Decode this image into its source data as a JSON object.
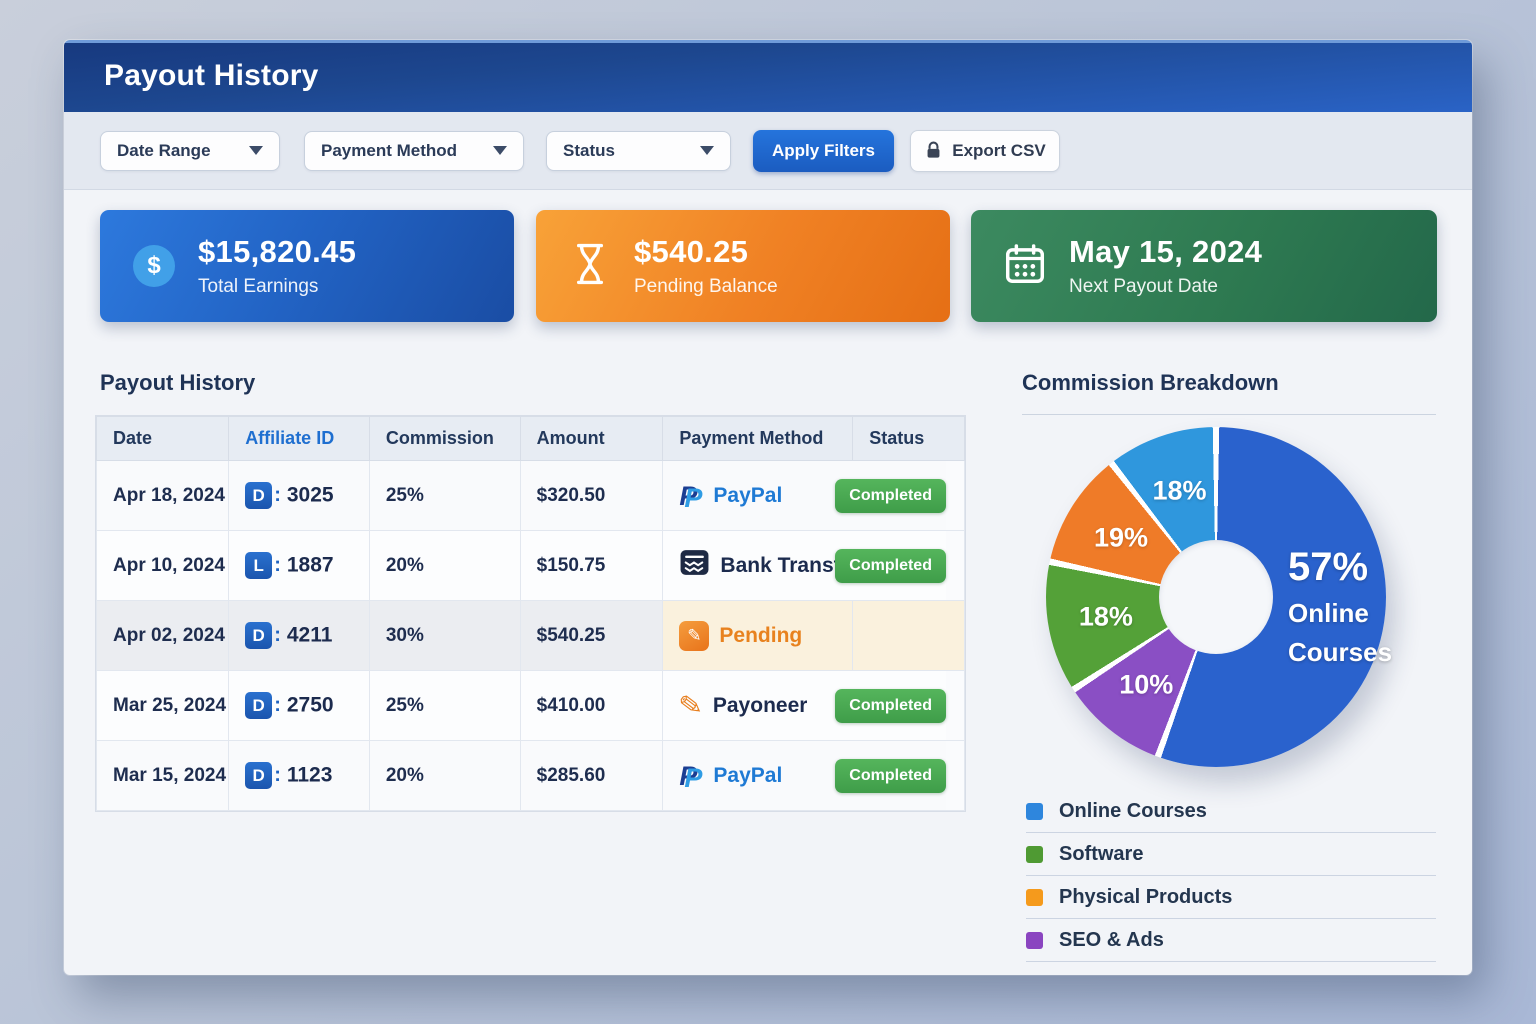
{
  "header": {
    "title": "Payout History"
  },
  "filters": {
    "dropdowns": [
      {
        "label": "Date Range"
      },
      {
        "label": "Payment Method"
      },
      {
        "label": "Status"
      }
    ],
    "apply_label": "Apply Filters",
    "export_label": "Export CSV"
  },
  "stats": [
    {
      "value": "$15,820.45",
      "label": "Total Earnings",
      "icon": "dollar-circle-icon",
      "color": "#2263c4"
    },
    {
      "value": "$540.25",
      "label": "Pending Balance",
      "icon": "hourglass-icon",
      "color": "#f08124"
    },
    {
      "value": "May 15, 2024",
      "label": "Next Payout Date",
      "icon": "calendar-icon",
      "color": "#2e7a51"
    }
  ],
  "table": {
    "title": "Payout History",
    "columns": [
      "Date",
      "Affiliate ID",
      "Commission",
      "Amount",
      "Payment Method",
      "Status"
    ],
    "rows": [
      {
        "date": "Apr 18, 2024",
        "affiliate_badge": "D",
        "affiliate_id": "3025",
        "commission": "25%",
        "amount": "$320.50",
        "method": "PayPal",
        "method_icon": "paypal-icon",
        "status": "Completed"
      },
      {
        "date": "Apr 10, 2024",
        "affiliate_badge": "L",
        "affiliate_id": "1887",
        "commission": "20%",
        "amount": "$150.75",
        "method": "Bank Transfe",
        "method_icon": "bank-transfer-icon",
        "status": "Completed"
      },
      {
        "date": "Apr 02, 2024",
        "affiliate_badge": "D",
        "affiliate_id": "4211",
        "commission": "30%",
        "amount": "$540.25",
        "method": "Pending",
        "method_icon": "pending-icon",
        "status": ""
      },
      {
        "date": "Mar 25, 2024",
        "affiliate_badge": "D",
        "affiliate_id": "2750",
        "commission": "25%",
        "amount": "$410.00",
        "method": "Payoneer",
        "method_icon": "payoneer-icon",
        "status": "Completed"
      },
      {
        "date": "Mar 15, 2024",
        "affiliate_badge": "D",
        "affiliate_id": "1123",
        "commission": "20%",
        "amount": "$285.60",
        "method": "PayPal",
        "method_icon": "paypal-icon",
        "status": "Completed"
      }
    ],
    "status_badge_color": "#46a44f"
  },
  "breakdown": {
    "title": "Commission Breakdown",
    "chart_data": {
      "type": "pie",
      "style": "donut",
      "title": "Commission Breakdown",
      "legend_position": "bottom",
      "slices": [
        {
          "name": "Online Courses",
          "value": 57,
          "label": "57%",
          "color": "#2a62cd",
          "start_deg": 0,
          "end_deg": 200,
          "center_label": {
            "value": "57%",
            "lines": [
              "Online",
              "Courses"
            ]
          }
        },
        {
          "name": "SEO & Ads",
          "value": 10,
          "label": "10%",
          "color": "#8a4fc4",
          "start_deg": 200,
          "end_deg": 237
        },
        {
          "name": "Software",
          "value": 18,
          "label": "18%",
          "color": "#54a138",
          "start_deg": 237,
          "end_deg": 282
        },
        {
          "name": "Physical Products",
          "value": 19,
          "label": "19%",
          "color": "#ef7b28",
          "start_deg": 282,
          "end_deg": 322
        },
        {
          "name": "Online Courses (light)",
          "value": 18,
          "label": "18%",
          "color": "#2f97dd",
          "start_deg": 322,
          "end_deg": 360
        }
      ],
      "legend": [
        {
          "label": "Online Courses",
          "color": "#2e86dd"
        },
        {
          "label": "Software",
          "color": "#4f9a33"
        },
        {
          "label": "Physical Products",
          "color": "#f59a1c"
        },
        {
          "label": "SEO & Ads",
          "color": "#8a44c0"
        }
      ]
    }
  }
}
